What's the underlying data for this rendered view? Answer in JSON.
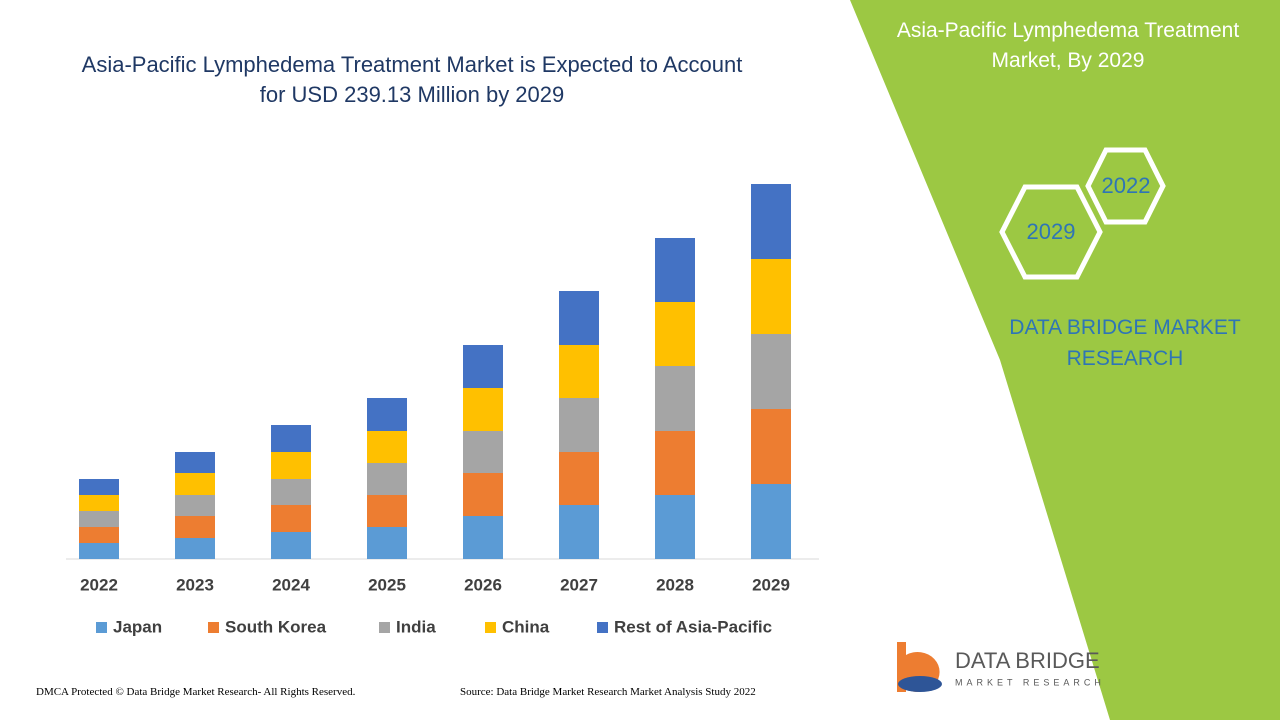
{
  "chart_data": {
    "type": "stacked-bar",
    "title": "Asia-Pacific Lymphedema Treatment Market is Expected to Account for USD 239.13 Million by 2029",
    "categories": [
      "2022",
      "2023",
      "2024",
      "2025",
      "2026",
      "2027",
      "2028",
      "2029"
    ],
    "series": [
      {
        "name": "Japan",
        "color": "#5b9bd5",
        "values": [
          16,
          21,
          27,
          32,
          43,
          54,
          64,
          75
        ]
      },
      {
        "name": "South Korea",
        "color": "#ed7d31",
        "values": [
          16,
          22,
          27,
          32,
          43,
          53,
          64,
          75
        ]
      },
      {
        "name": "India",
        "color": "#a5a5a5",
        "values": [
          16,
          21,
          26,
          32,
          42,
          54,
          65,
          75
        ]
      },
      {
        "name": "China",
        "color": "#ffc000",
        "values": [
          16,
          22,
          27,
          32,
          43,
          53,
          64,
          75
        ]
      },
      {
        "name": "Rest of Asia-Pacific",
        "color": "#4472c4",
        "values": [
          16,
          21,
          27,
          33,
          43,
          54,
          64,
          75
        ]
      }
    ],
    "ylim": [
      0,
      375
    ],
    "legend": "bottom"
  },
  "side_panel": {
    "title": "Asia-Pacific Lymphedema Treatment Market, By 2029",
    "hexagons": [
      "2022",
      "2029"
    ],
    "brand": "DATA BRIDGE MARKET RESEARCH"
  },
  "logo": {
    "name": "DATA BRIDGE",
    "tagline": "MARKET RESEARCH"
  },
  "footer": {
    "left": "DMCA Protected © Data Bridge Market Research- All Rights Reserved.",
    "right": "Source: Data Bridge Market Research Market Analysis Study 2022"
  }
}
